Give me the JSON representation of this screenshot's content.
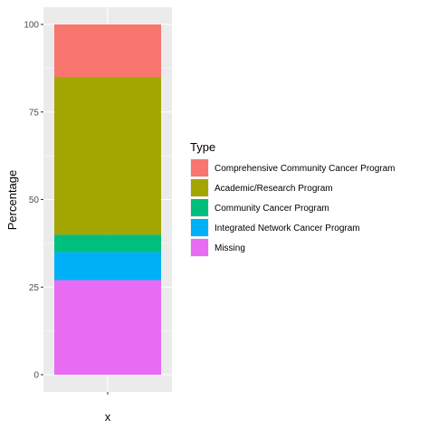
{
  "chart_data": {
    "type": "bar",
    "stacked": true,
    "categories": [
      "x"
    ],
    "xlabel": "x",
    "ylabel": "Percentage",
    "ylim": [
      0,
      100
    ],
    "yticks": [
      0,
      25,
      50,
      75,
      100
    ],
    "grid": true,
    "legend": {
      "title": "Type",
      "placement": "right"
    },
    "series": [
      {
        "name": "Comprehensive Community Cancer Program",
        "color": "#F8766D",
        "values": [
          15
        ]
      },
      {
        "name": "Academic/Research Program",
        "color": "#A3A500",
        "values": [
          45
        ]
      },
      {
        "name": "Community Cancer Program",
        "color": "#00BF7D",
        "values": [
          5
        ]
      },
      {
        "name": "Integrated Network Cancer Program",
        "color": "#00B0F6",
        "values": [
          8
        ]
      },
      {
        "name": "Missing",
        "color": "#E76BF3",
        "values": [
          27
        ]
      }
    ]
  }
}
